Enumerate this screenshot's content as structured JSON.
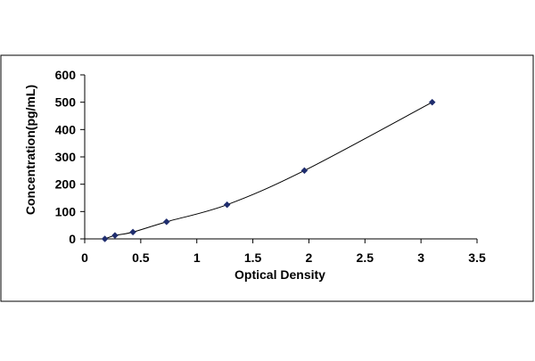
{
  "chart_data": {
    "type": "scatter",
    "title": "",
    "xlabel": "Optical Density",
    "ylabel": "Concentration(pg/mL)",
    "xlim": [
      0,
      3.5
    ],
    "ylim": [
      0,
      600
    ],
    "xticks": [
      "0",
      "0.5",
      "1",
      "1.5",
      "2",
      "2.5",
      "3",
      "3.5"
    ],
    "yticks": [
      "0",
      "100",
      "200",
      "300",
      "400",
      "500",
      "600"
    ],
    "grid": false,
    "legend": "none",
    "trendline": "smooth",
    "series": [
      {
        "x": [
          0.18,
          0.27,
          0.43,
          0.73,
          1.27,
          1.96,
          3.1
        ],
        "y": [
          0,
          12.5,
          25,
          62.5,
          125,
          250,
          500
        ],
        "marker": "diamond",
        "color": "#1f2d6e"
      }
    ]
  }
}
